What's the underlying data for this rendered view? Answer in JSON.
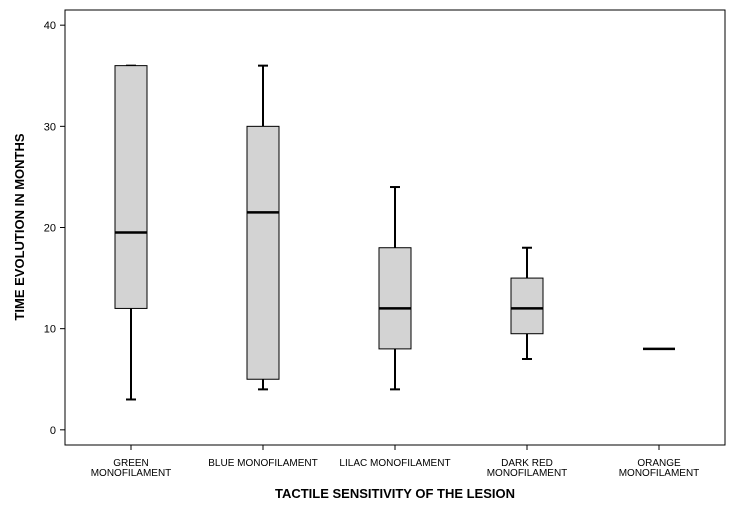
{
  "chart_data": {
    "type": "box",
    "xlabel": "TACTILE SENSITIVITY OF THE LESION",
    "ylabel": "TIME EVOLUTION IN MONTHS",
    "ylim": [
      -1.5,
      41.5
    ],
    "yticks": [
      0,
      10,
      20,
      30,
      40
    ],
    "grid": false,
    "colors": {
      "box_fill": "#d3d3d3",
      "stroke": "#000000"
    },
    "categories": [
      {
        "label": [
          "GREEN",
          "MONOFILAMENT"
        ],
        "min": 3,
        "q1": 12,
        "median": 19.5,
        "q3": 36,
        "max": 36
      },
      {
        "label": [
          "BLUE MONOFILAMENT"
        ],
        "min": 4,
        "q1": 5,
        "median": 21.5,
        "q3": 30,
        "max": 36
      },
      {
        "label": [
          "LILAC MONOFILAMENT"
        ],
        "min": 4,
        "q1": 8,
        "median": 12,
        "q3": 18,
        "max": 24
      },
      {
        "label": [
          "DARK RED",
          "MONOFILAMENT"
        ],
        "min": 7,
        "q1": 9.5,
        "median": 12,
        "q3": 15,
        "max": 18
      },
      {
        "label": [
          "ORANGE",
          "MONOFILAMENT"
        ],
        "min": 8,
        "q1": 8,
        "median": 8,
        "q3": 8,
        "max": 8
      }
    ]
  }
}
